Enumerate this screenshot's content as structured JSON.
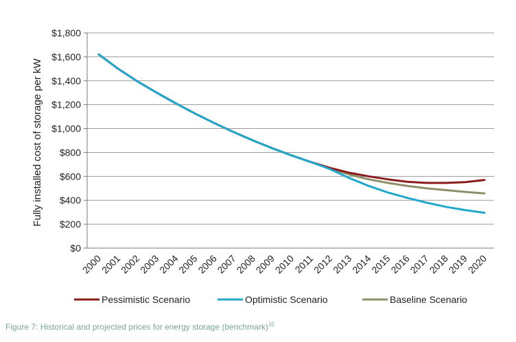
{
  "chart_data": {
    "type": "line",
    "title": "",
    "xlabel": "",
    "ylabel": "Fully installed cost of storage per kW",
    "ylim": [
      0,
      1800
    ],
    "y_ticks": [
      0,
      200,
      400,
      600,
      800,
      1000,
      1200,
      1400,
      1600,
      1800
    ],
    "y_tick_labels": [
      "$0",
      "$200",
      "$400",
      "$600",
      "$800",
      "$1,000",
      "$1,200",
      "$1,400",
      "$1,600",
      "$1,800"
    ],
    "categories": [
      "2000",
      "2001",
      "2002",
      "2003",
      "2004",
      "2005",
      "2006",
      "2007",
      "2008",
      "2009",
      "2010",
      "2011",
      "2012",
      "2013",
      "2014",
      "2015",
      "2016",
      "2017",
      "2018",
      "2019",
      "2020"
    ],
    "grid": true,
    "legend_position": "bottom",
    "series": [
      {
        "name": "Pessimistic Scenario",
        "color": "#8b1a1a",
        "values": [
          1620,
          1500,
          1395,
          1300,
          1210,
          1125,
          1045,
          970,
          900,
          835,
          775,
          720,
          670,
          630,
          600,
          575,
          555,
          545,
          545,
          552,
          570
        ]
      },
      {
        "name": "Optimistic Scenario",
        "color": "#20a8cc",
        "values": [
          1620,
          1500,
          1395,
          1300,
          1210,
          1125,
          1045,
          970,
          900,
          835,
          775,
          720,
          660,
          585,
          520,
          465,
          420,
          380,
          345,
          318,
          295
        ]
      },
      {
        "name": "Baseline Scenario",
        "color": "#8e8e6a",
        "values": [
          1620,
          1500,
          1395,
          1300,
          1210,
          1125,
          1045,
          970,
          900,
          835,
          775,
          720,
          665,
          615,
          575,
          545,
          520,
          500,
          485,
          470,
          458
        ]
      }
    ]
  },
  "caption": {
    "text": "Figure 7: Historical and projected prices for energy storage (benchmark)",
    "footnote": "10"
  }
}
